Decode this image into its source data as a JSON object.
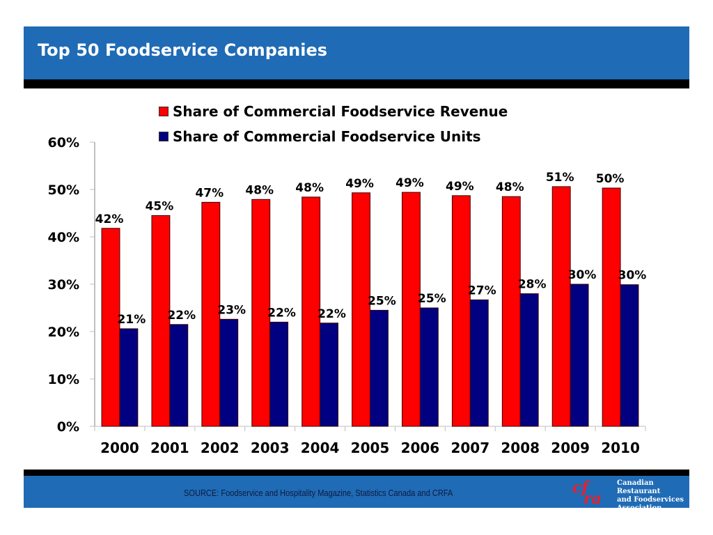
{
  "header": {
    "title": "Top 50 Foodservice Companies"
  },
  "footer": {
    "source": "SOURCE:  Foodservice and Hospitality Magazine, Statistics Canada and CRFA",
    "logo_mark": "crfa",
    "logo_text": [
      "Canadian Restaurant",
      "and Foodservices",
      "Association"
    ]
  },
  "colors": {
    "header_bg": "#1f6bb5",
    "revenue": "#ff0000",
    "units": "#000080"
  },
  "chart_data": {
    "type": "bar",
    "title": "Top 50 Foodservice Companies",
    "xlabel": "",
    "ylabel": "",
    "categories": [
      "2000",
      "2001",
      "2002",
      "2003",
      "2004",
      "2005",
      "2006",
      "2007",
      "2008",
      "2009",
      "2010"
    ],
    "series": [
      {
        "name": "Share of Commercial Foodservice Revenue",
        "color": "#ff0000",
        "values": [
          41.8,
          44.5,
          47.3,
          47.9,
          48.4,
          49.3,
          49.4,
          48.7,
          48.5,
          50.6,
          50.3
        ],
        "labels": [
          "42%",
          "45%",
          "47%",
          "48%",
          "48%",
          "49%",
          "49%",
          "49%",
          "48%",
          "51%",
          "50%"
        ]
      },
      {
        "name": "Share of Commercial Foodservice Units",
        "color": "#000080",
        "values": [
          20.6,
          21.5,
          22.6,
          22.0,
          21.8,
          24.5,
          25.0,
          26.7,
          28.0,
          30.0,
          29.9
        ],
        "labels": [
          "21%",
          "22%",
          "23%",
          "22%",
          "22%",
          "25%",
          "25%",
          "27%",
          "28%",
          "30%",
          "30%"
        ]
      }
    ],
    "yticks": [
      "0%",
      "10%",
      "20%",
      "30%",
      "40%",
      "50%",
      "60%"
    ],
    "ylim": [
      0,
      60
    ],
    "grid": false,
    "legend": "top-center"
  }
}
